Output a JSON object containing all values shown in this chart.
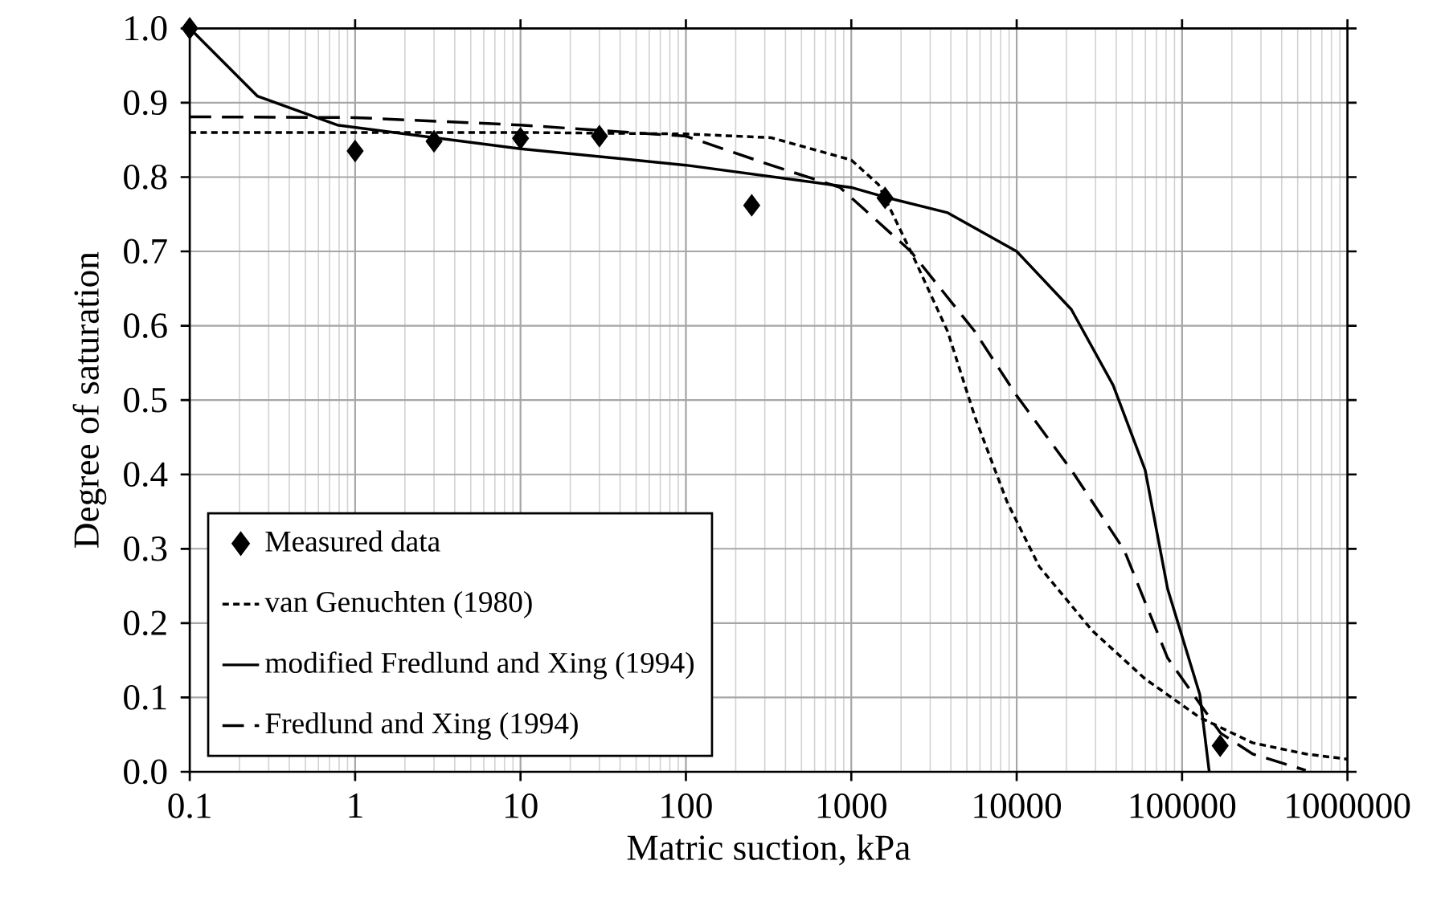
{
  "chart_data": {
    "type": "line",
    "xlabel": "Matric suction, kPa",
    "ylabel": "Degree of saturation",
    "log": "x",
    "grid": true,
    "legend": "bottom left",
    "xlim": [
      0.1,
      1000000
    ],
    "xticks": [
      0.1,
      1,
      10,
      100,
      1000,
      10000,
      100000,
      1000000
    ],
    "ylim": [
      0,
      1
    ],
    "yticks": [
      {
        "value": 0,
        "label": "0.0"
      },
      {
        "value": 0.1,
        "label": "0.1"
      },
      {
        "value": 0.2,
        "label": "0.2"
      },
      {
        "value": 0.3,
        "label": "0.3"
      },
      {
        "value": 0.4,
        "label": "0.4"
      },
      {
        "value": 0.5,
        "label": "0.5"
      },
      {
        "value": 0.6,
        "label": "0.6"
      },
      {
        "value": 0.7,
        "label": "0.7"
      },
      {
        "value": 0.8,
        "label": "0.8"
      },
      {
        "value": 0.9,
        "label": "0.9"
      },
      {
        "value": 1,
        "label": "1.0"
      }
    ],
    "series": [
      {
        "name": "Measured data",
        "type": "scatter",
        "marker": "diamond",
        "color": "#000000",
        "x": [
          0.1,
          1,
          3,
          10,
          30,
          250,
          1600,
          170000
        ],
        "values": [
          1.0,
          0.835,
          0.848,
          0.852,
          0.855,
          0.762,
          0.772,
          0.035
        ]
      },
      {
        "name": "van Genuchten (1980)",
        "line_style": "dotted",
        "color": "#000000",
        "x": [
          0.1,
          1,
          10,
          100,
          327,
          1000,
          1460,
          2440,
          3830,
          5600,
          8750,
          13700,
          28600,
          59800,
          128000,
          267000,
          560000,
          1000000
        ],
        "values": [
          0.86,
          0.86,
          0.86,
          0.858,
          0.853,
          0.823,
          0.79,
          0.687,
          0.592,
          0.477,
          0.363,
          0.276,
          0.19,
          0.125,
          0.073,
          0.039,
          0.024,
          0.017
        ]
      },
      {
        "name": "modified Fredlund and Xing (1994)",
        "line_style": "solid",
        "color": "#000000",
        "x": [
          0.1,
          0.256,
          0.78,
          10,
          100,
          1000,
          1600,
          3830,
          10000,
          21400,
          38300,
          59800,
          81800,
          128000,
          146000
        ],
        "values": [
          1.0,
          0.909,
          0.87,
          0.838,
          0.816,
          0.786,
          0.773,
          0.752,
          0.7,
          0.622,
          0.52,
          0.406,
          0.246,
          0.104,
          0.0
        ]
      },
      {
        "name": "Fredlund and Xing (1994)",
        "line_style": "dashed",
        "color": "#000000",
        "x": [
          0.1,
          1,
          10,
          100,
          327,
          855,
          2290,
          5600,
          10000,
          21400,
          44700,
          81800,
          171000,
          267000,
          560000
        ],
        "values": [
          0.881,
          0.88,
          0.87,
          0.855,
          0.816,
          0.786,
          0.7,
          0.592,
          0.506,
          0.406,
          0.298,
          0.153,
          0.052,
          0.024,
          0.002
        ]
      }
    ]
  }
}
